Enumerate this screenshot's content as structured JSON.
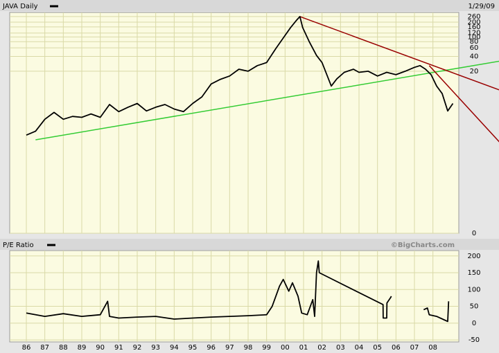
{
  "chart_data": [
    {
      "type": "line",
      "title": "JAVA Daily",
      "date": "1/29/09",
      "ylog": true,
      "grid": true,
      "xlim": [
        1985.1,
        2009.4
      ],
      "ylim": [
        0.01,
        315
      ],
      "yticks": [
        {
          "value": 0.01,
          "label": "0"
        },
        20,
        40,
        60,
        80,
        100,
        120,
        160,
        200,
        260
      ],
      "x": [
        1986.0,
        1986.5,
        1987.0,
        1987.5,
        1988.0,
        1988.5,
        1989.0,
        1989.5,
        1990.0,
        1990.5,
        1991.0,
        1991.5,
        1992.0,
        1992.5,
        1993.0,
        1993.5,
        1994.0,
        1994.5,
        1995.0,
        1995.5,
        1996.0,
        1996.5,
        1997.0,
        1997.5,
        1998.0,
        1998.5,
        1999.0,
        1999.5,
        1999.9,
        2000.3,
        2000.6,
        2000.8,
        2000.95,
        2001.3,
        2001.7,
        2002.0,
        2002.5,
        2002.8,
        2003.2,
        2003.7,
        2004.0,
        2004.5,
        2005.0,
        2005.5,
        2006.0,
        2006.5,
        2007.0,
        2007.3,
        2007.6,
        2007.9,
        2008.2,
        2008.5,
        2008.8,
        2009.08
      ],
      "series": [
        {
          "color": "#000000",
          "values": [
            1.0,
            1.2,
            2.1,
            2.9,
            2.1,
            2.4,
            2.3,
            2.7,
            2.3,
            4.2,
            3.0,
            3.7,
            4.4,
            3.1,
            3.7,
            4.2,
            3.4,
            3.0,
            4.4,
            6.0,
            11,
            13.7,
            16,
            22,
            20,
            26,
            30,
            58,
            95,
            155,
            214,
            260,
            155,
            81,
            42,
            30,
            10,
            14,
            19,
            22,
            19,
            20,
            16,
            19,
            17,
            20,
            24,
            26,
            22,
            17,
            10,
            7,
            3.1,
            4.4
          ]
        }
      ],
      "trendlines": [
        {
          "color": "#33cc33",
          "x": [
            1986.5,
            2011.6
          ],
          "values": [
            0.8,
            32
          ]
        },
        {
          "color": "#990000",
          "x": [
            2000.8,
            2011.6
          ],
          "values": [
            260,
            8.3
          ]
        },
        {
          "color": "#990000",
          "x": [
            2007.8,
            2011.6
          ],
          "values": [
            26,
            0.72
          ]
        }
      ]
    },
    {
      "type": "line",
      "title": "P/E Ratio",
      "source": "©BigCharts.com",
      "grid": true,
      "xlim": [
        1985.1,
        2009.4
      ],
      "ylim": [
        -56,
        216
      ],
      "yticks": [
        -50,
        0,
        50,
        100,
        150,
        200
      ],
      "xticks": [
        {
          "value": 1986,
          "label": "86"
        },
        {
          "value": 1987,
          "label": "87"
        },
        {
          "value": 1988,
          "label": "88"
        },
        {
          "value": 1989,
          "label": "89"
        },
        {
          "value": 1990,
          "label": "90"
        },
        {
          "value": 1991,
          "label": "91"
        },
        {
          "value": 1992,
          "label": "92"
        },
        {
          "value": 1993,
          "label": "93"
        },
        {
          "value": 1994,
          "label": "94"
        },
        {
          "value": 1995,
          "label": "95"
        },
        {
          "value": 1996,
          "label": "96"
        },
        {
          "value": 1997,
          "label": "97"
        },
        {
          "value": 1998,
          "label": "98"
        },
        {
          "value": 1999,
          "label": "99"
        },
        {
          "value": 2000,
          "label": "00"
        },
        {
          "value": 2001,
          "label": "01"
        },
        {
          "value": 2002,
          "label": "02"
        },
        {
          "value": 2003,
          "label": "03"
        },
        {
          "value": 2004,
          "label": "04"
        },
        {
          "value": 2005,
          "label": "05"
        },
        {
          "value": 2006,
          "label": "06"
        },
        {
          "value": 2007,
          "label": "07"
        },
        {
          "value": 2008,
          "label": "08"
        }
      ],
      "x": [
        1986.0,
        1987.0,
        1988.0,
        1989.0,
        1990.0,
        1990.4,
        1990.5,
        1991.0,
        1992.0,
        1993.0,
        1994.0,
        1995.0,
        1996.0,
        1997.0,
        1998.0,
        1999.0,
        1999.3,
        1999.7,
        1999.9,
        2000.2,
        2000.4,
        2000.7,
        2000.9,
        2001.2,
        2001.5,
        2001.6,
        2001.7,
        2001.8,
        2001.85,
        2005.3,
        2005.31,
        2005.5,
        2005.51,
        2005.7,
        2005.75,
        2006.5,
        2007.5,
        2007.7,
        2007.8,
        2008.2,
        2008.6,
        2008.8,
        2008.85
      ],
      "series": [
        {
          "color": "#000000",
          "values": [
            30,
            20,
            28,
            20,
            25,
            65,
            20,
            15,
            18,
            20,
            12,
            15,
            18,
            20,
            22,
            25,
            50,
            110,
            130,
            95,
            120,
            80,
            30,
            25,
            70,
            20,
            150,
            185,
            150,
            55,
            15,
            15,
            60,
            75,
            80,
            null,
            40,
            45,
            25,
            20,
            10,
            5,
            65
          ]
        }
      ]
    }
  ]
}
